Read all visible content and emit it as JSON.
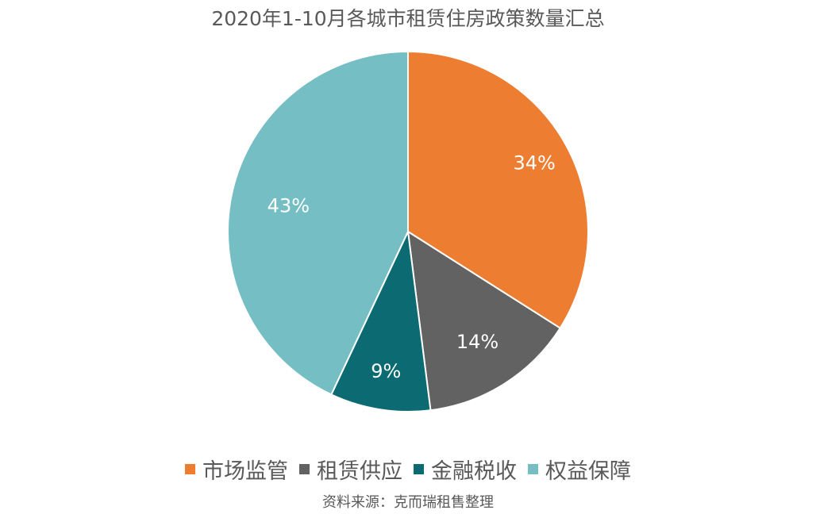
{
  "chart_data": {
    "type": "pie",
    "title": "2020年1-10月各城市租赁住房政策数量汇总",
    "categories": [
      "市场监管",
      "租赁供应",
      "金融税收",
      "权益保障"
    ],
    "values": [
      34,
      14,
      9,
      43
    ],
    "labels": [
      "34%",
      "14%",
      "9%",
      "43%"
    ],
    "colors": [
      "#ED7D31",
      "#626262",
      "#0B6A72",
      "#74BEC4"
    ],
    "start_angle": "12 o'clock",
    "direction": "clockwise",
    "legend_position": "bottom",
    "source": "资料来源：克而瑞租售整理"
  },
  "legend": {
    "items": [
      {
        "label": "市场监管",
        "color": "#ED7D31"
      },
      {
        "label": "租赁供应",
        "color": "#626262"
      },
      {
        "label": "金融税收",
        "color": "#0B6A72"
      },
      {
        "label": "权益保障",
        "color": "#74BEC4"
      }
    ]
  }
}
